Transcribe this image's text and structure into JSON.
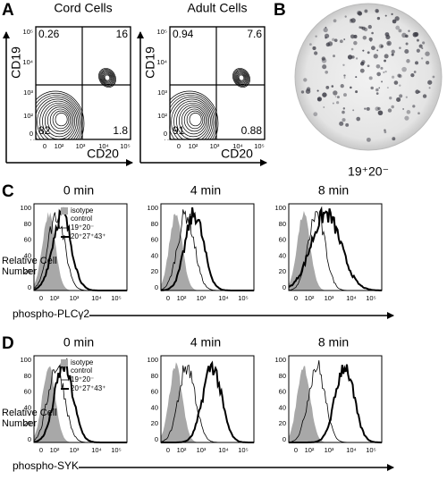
{
  "panel_a": {
    "label": "A",
    "plots": [
      {
        "title": "Cord Cells",
        "y_label": "CD19",
        "x_label": "CD20",
        "quadrants": {
          "top_left": "0.26",
          "top_right": "16",
          "bottom_left": "82",
          "bottom_right": "1.8"
        }
      },
      {
        "title": "Adult Cells",
        "y_label": "CD19",
        "x_label": "CD20",
        "quadrants": {
          "top_left": "0.94",
          "top_right": "7.6",
          "bottom_left": "91",
          "bottom_right": "0.88"
        }
      }
    ],
    "y_ticks": [
      "10⁵",
      "10⁴",
      "10³",
      "10²",
      "0"
    ],
    "x_ticks": [
      "0",
      "10²",
      "10³",
      "10⁴",
      "10⁵"
    ]
  },
  "panel_b": {
    "label": "B",
    "caption": "19⁺20⁻"
  },
  "histogram_panels": [
    {
      "label": "C",
      "times": [
        "0 min",
        "4 min",
        "8 min"
      ],
      "x_label": "phospho-PLCγ2"
    },
    {
      "label": "D",
      "times": [
        "0 min",
        "4 min",
        "8 min"
      ],
      "x_label": "phospho-SYK"
    }
  ],
  "histogram_axes": {
    "y_label": [
      "Relative Cell",
      "Number"
    ],
    "y_ticks": [
      "100",
      "80",
      "60",
      "40",
      "20",
      "0"
    ],
    "x_ticks": [
      "0",
      "10²",
      "10³",
      "10⁴",
      "10⁵"
    ]
  },
  "legend": {
    "isotype": [
      "isotype",
      "control"
    ],
    "thin": "19⁺20⁻",
    "thick": "20⁺27⁺43⁺"
  }
}
